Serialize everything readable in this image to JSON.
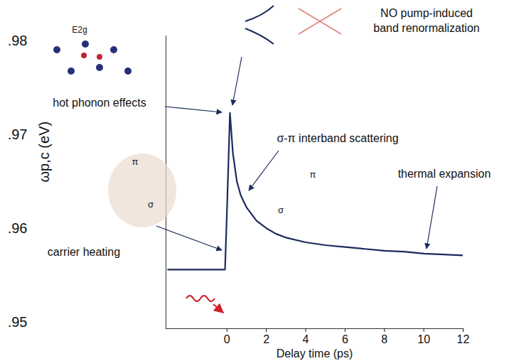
{
  "chart_data": {
    "type": "line",
    "x_label": "Delay time (ps)",
    "y_label": "ωp,c (eV)",
    "x": [
      -3,
      -2,
      -1,
      -0.1,
      0,
      0.15,
      0.3,
      0.5,
      0.7,
      1,
      1.5,
      2,
      2.5,
      3,
      4,
      5,
      6,
      7,
      8,
      9,
      10,
      11,
      12
    ],
    "values": [
      0.9556,
      0.9556,
      0.9556,
      0.9556,
      0.962,
      0.9723,
      0.968,
      0.965,
      0.9635,
      0.9622,
      0.9608,
      0.96,
      0.9594,
      0.959,
      0.9585,
      0.9582,
      0.958,
      0.9578,
      0.9576,
      0.9575,
      0.9573,
      0.9572,
      0.9571
    ],
    "color": "#1b2a5c",
    "xlim": [
      -3.1,
      12
    ],
    "xticks": [
      0,
      2,
      4,
      6,
      8,
      10,
      12
    ],
    "ylim": [
      0.9493,
      0.9805
    ],
    "yticks": [
      {
        "value": 0.95,
        "label": ".95"
      },
      {
        "value": 0.96,
        "label": ".96"
      },
      {
        "value": 0.97,
        "label": ".97"
      },
      {
        "value": 0.98,
        "label": ".98"
      }
    ],
    "grid": false,
    "annotations": {
      "pump_note": [
        "NO pump-induced",
        "band renormalization"
      ],
      "hot_phonon": "hot phonon effects",
      "phonon_mode": "E2g",
      "interband": "σ-π interband scattering",
      "thermal": "thermal expansion",
      "carrier": "carrier heating",
      "orbitals": [
        "π",
        "σ",
        "σ",
        "π"
      ]
    }
  }
}
